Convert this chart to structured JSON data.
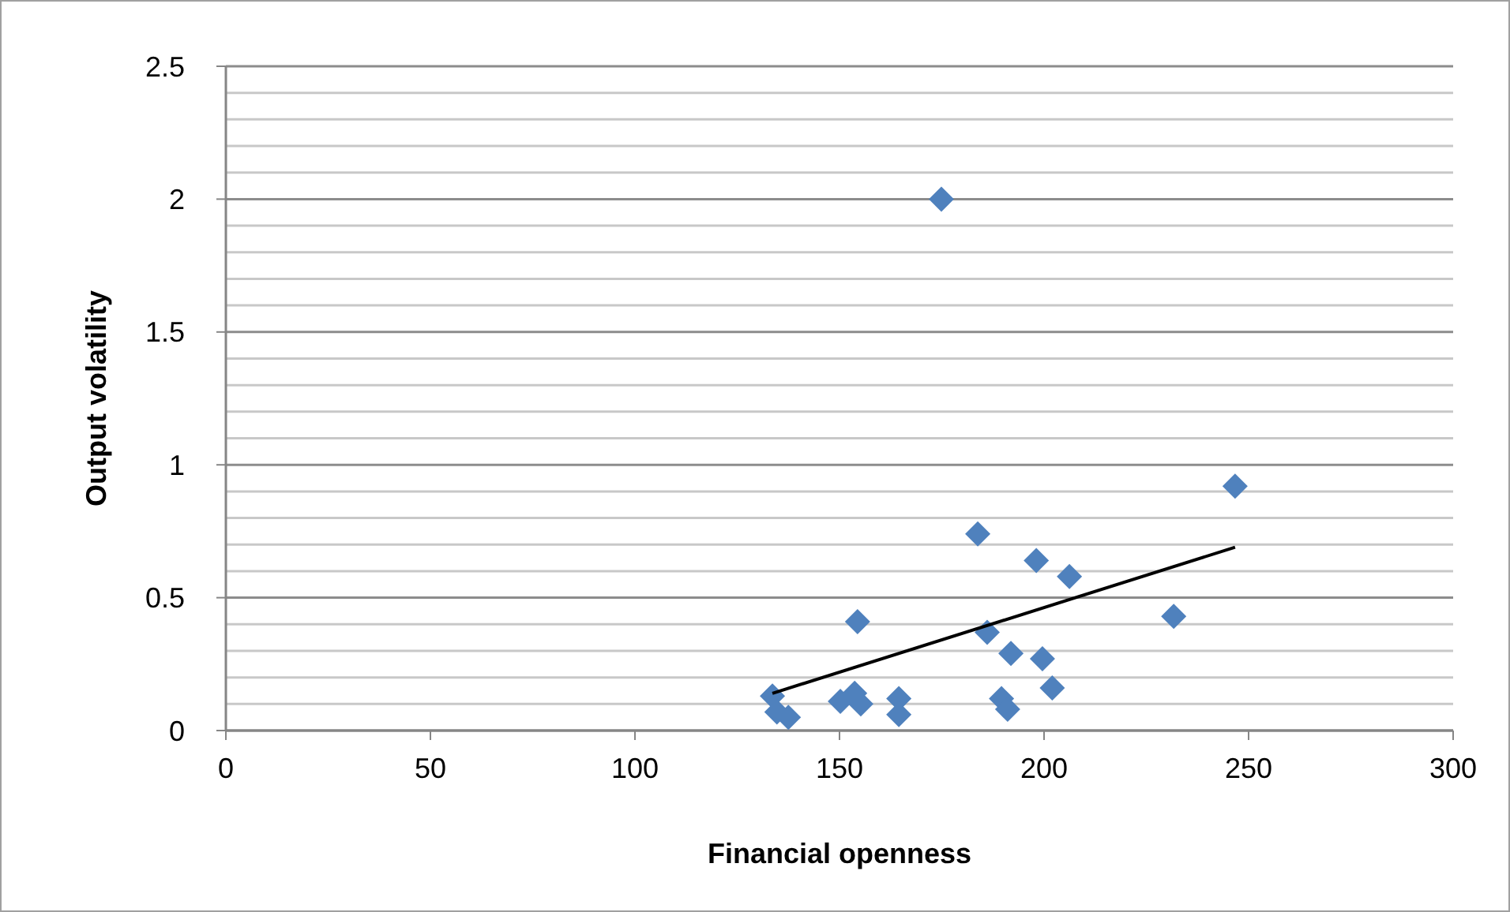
{
  "chart_data": {
    "type": "scatter",
    "xlabel": "Financial openness",
    "ylabel": "Output volatility",
    "xlim": [
      0,
      300
    ],
    "xticks": [
      0,
      50,
      100,
      150,
      200,
      250,
      300
    ],
    "ylim": [
      0,
      2.5
    ],
    "yticks": [
      0,
      {
        "value": 0.1,
        "label": null
      },
      {
        "value": 0.2,
        "label": null
      },
      {
        "value": 0.3,
        "label": null
      },
      {
        "value": 0.4,
        "label": null
      },
      0.5,
      {
        "value": 0.6,
        "label": null
      },
      {
        "value": 0.7,
        "label": null
      },
      {
        "value": 0.8,
        "label": null
      },
      {
        "value": 0.9,
        "label": null
      },
      1,
      {
        "value": 1.1,
        "label": null
      },
      {
        "value": 1.2,
        "label": null
      },
      {
        "value": 1.3,
        "label": null
      },
      {
        "value": 1.4,
        "label": null
      },
      1.5,
      {
        "value": 1.6,
        "label": null
      },
      {
        "value": 1.7,
        "label": null
      },
      {
        "value": 1.8,
        "label": null
      },
      {
        "value": 1.9,
        "label": null
      },
      2,
      {
        "value": 2.1,
        "label": null
      },
      {
        "value": 2.2,
        "label": null
      },
      {
        "value": 2.3,
        "label": null
      },
      {
        "value": 2.4,
        "label": null
      },
      2.5
    ],
    "grid": "y",
    "series": [
      {
        "color": "#4f81bd",
        "marker": "diamond",
        "x": [
          133.6,
          134.7,
          137.5,
          150.2,
          153.7,
          155.2,
          154.4,
          164.5,
          164.5,
          174.9,
          183.8,
          186.1,
          189.6,
          191.1,
          191.9,
          198.1,
          199.6,
          202.0,
          206.2,
          231.7,
          246.7
        ],
        "values": [
          0.13,
          0.07,
          0.05,
          0.11,
          0.14,
          0.1,
          0.41,
          0.12,
          0.06,
          2.0,
          0.74,
          0.37,
          0.12,
          0.08,
          0.29,
          0.64,
          0.27,
          0.16,
          0.58,
          0.43,
          0.92
        ]
      },
      {
        "type": "line",
        "color": "#000000",
        "marker": "none",
        "x": [
          133.6,
          246.7
        ],
        "values": [
          0.14,
          0.69
        ]
      }
    ]
  }
}
